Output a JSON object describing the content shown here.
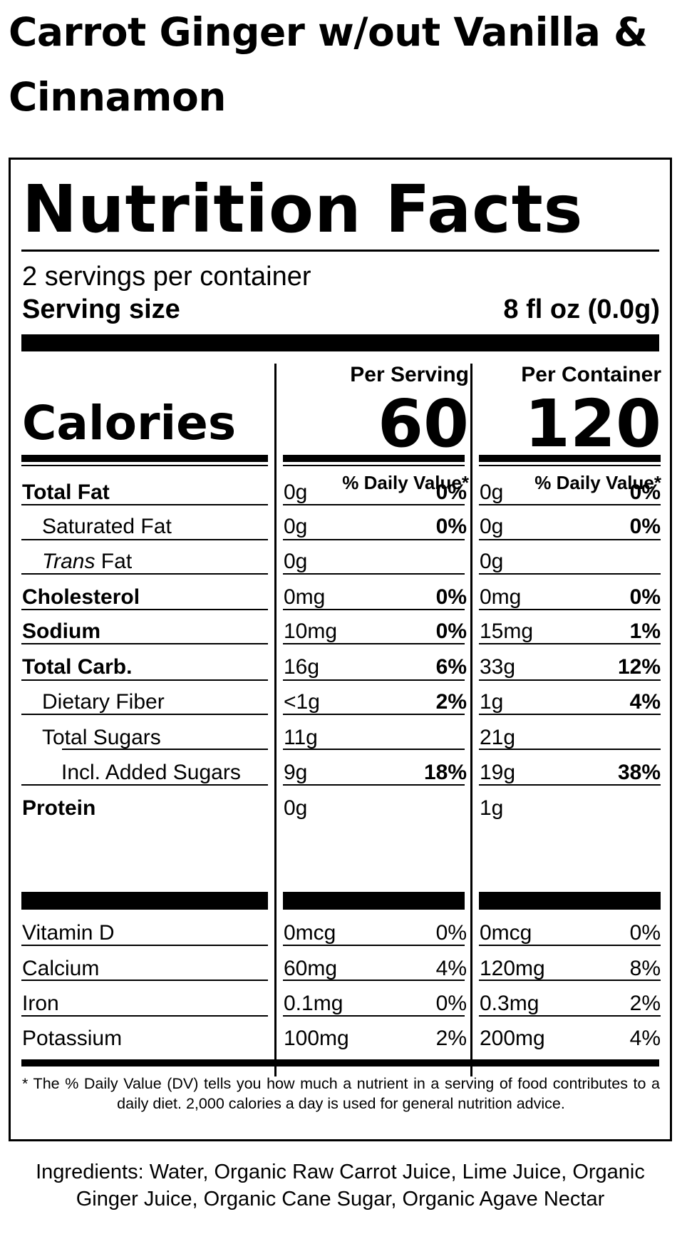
{
  "product": {
    "title": "Carrot Ginger w/out Vanilla & Cinnamon"
  },
  "label": {
    "heading": "Nutrition Facts",
    "servings_per_container": "2 servings per container",
    "serving_size_label": "Serving size",
    "serving_size_value": "8 fl oz (0.0g)",
    "calories_label": "Calories",
    "per_serving_label": "Per Serving",
    "per_container_label": "Per Container",
    "calories_per_serving": "60",
    "calories_per_container": "120",
    "daily_value_label": "% Daily Value*",
    "nutrients": [
      {
        "name": "Total Fat",
        "serving_amount": "0g",
        "serving_dv": "0%",
        "container_amount": "0g",
        "container_dv": "0%"
      },
      {
        "name": "Saturated Fat",
        "serving_amount": "0g",
        "serving_dv": "0%",
        "container_amount": "0g",
        "container_dv": "0%"
      },
      {
        "name_italic": "Trans",
        "name_rest": " Fat",
        "serving_amount": "0g",
        "serving_dv": "",
        "container_amount": "0g",
        "container_dv": ""
      },
      {
        "name": "Cholesterol",
        "serving_amount": "0mg",
        "serving_dv": "0%",
        "container_amount": "0mg",
        "container_dv": "0%"
      },
      {
        "name": "Sodium",
        "serving_amount": "10mg",
        "serving_dv": "0%",
        "container_amount": "15mg",
        "container_dv": "1%"
      },
      {
        "name": "Total Carb.",
        "serving_amount": "16g",
        "serving_dv": "6%",
        "container_amount": "33g",
        "container_dv": "12%"
      },
      {
        "name": "Dietary Fiber",
        "serving_amount": "<1g",
        "serving_dv": "2%",
        "container_amount": "1g",
        "container_dv": "4%"
      },
      {
        "name": "Total Sugars",
        "serving_amount": "11g",
        "serving_dv": "",
        "container_amount": "21g",
        "container_dv": ""
      },
      {
        "name": "Incl. Added Sugars",
        "serving_amount": "9g",
        "serving_dv": "18%",
        "container_amount": "19g",
        "container_dv": "38%"
      },
      {
        "name": "Protein",
        "serving_amount": "0g",
        "serving_dv": "",
        "container_amount": "1g",
        "container_dv": ""
      }
    ],
    "vitamins": [
      {
        "name": "Vitamin D",
        "serving_amount": "0mcg",
        "serving_dv": "0%",
        "container_amount": "0mcg",
        "container_dv": "0%"
      },
      {
        "name": "Calcium",
        "serving_amount": "60mg",
        "serving_dv": "4%",
        "container_amount": "120mg",
        "container_dv": "8%"
      },
      {
        "name": "Iron",
        "serving_amount": "0.1mg",
        "serving_dv": "0%",
        "container_amount": "0.3mg",
        "container_dv": "2%"
      },
      {
        "name": "Potassium",
        "serving_amount": "100mg",
        "serving_dv": "2%",
        "container_amount": "200mg",
        "container_dv": "4%"
      }
    ],
    "footnote": "* The % Daily Value (DV) tells you how much a nutrient in a serving of food contributes to a daily diet. 2,000 calories a day is used for general nutrition advice."
  },
  "ingredients": "Ingredients: Water, Organic Raw Carrot Juice, Lime Juice, Organic Ginger Juice, Organic Cane Sugar, Organic Agave Nectar"
}
